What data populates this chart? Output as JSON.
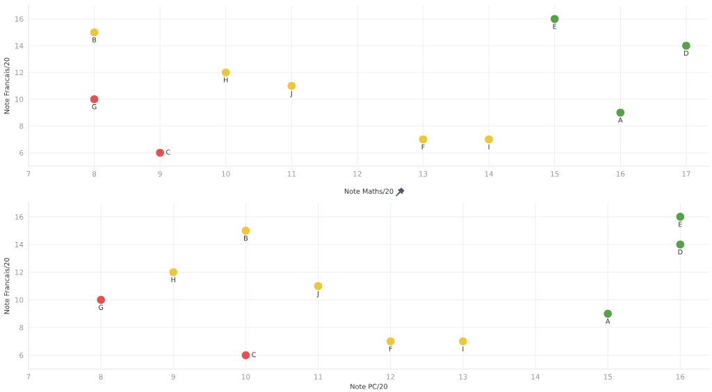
{
  "chart_data": [
    {
      "type": "scatter",
      "xlabel": "Note Maths/20",
      "ylabel": "Note Francais/20",
      "xlim": [
        7,
        17.35
      ],
      "ylim": [
        5,
        17
      ],
      "xticks": [
        7,
        8,
        9,
        10,
        11,
        12,
        13,
        14,
        15,
        16,
        17
      ],
      "yticks": [
        6,
        8,
        10,
        12,
        14,
        16
      ],
      "grid": true,
      "marker": "circle",
      "series": [
        {
          "x": [
            16,
            8,
            9,
            17,
            15,
            13,
            8,
            10,
            14,
            11
          ],
          "values": [
            9,
            15,
            6,
            14,
            16,
            7,
            10,
            12,
            7,
            11
          ],
          "colors": [
            "#55a048",
            "#f0c537",
            "#e15252",
            "#55a048",
            "#55a048",
            "#f0c537",
            "#e15252",
            "#f0c537",
            "#f0c537",
            "#f0c537"
          ]
        }
      ],
      "annotations": [
        {
          "text": "A",
          "x": 16,
          "y": 9
        },
        {
          "text": "B",
          "x": 8,
          "y": 15
        },
        {
          "text": "C",
          "x": 9,
          "y": 6
        },
        {
          "text": "D",
          "x": 17,
          "y": 14
        },
        {
          "text": "E",
          "x": 15,
          "y": 16
        },
        {
          "text": "F",
          "x": 13,
          "y": 7
        },
        {
          "text": "G",
          "x": 8,
          "y": 10
        },
        {
          "text": "H",
          "x": 10,
          "y": 12
        },
        {
          "text": "I",
          "x": 14,
          "y": 7
        },
        {
          "text": "J",
          "x": 11,
          "y": 11
        }
      ]
    },
    {
      "type": "scatter",
      "xlabel": "Note PC/20",
      "ylabel": "Note Francais/20",
      "xlim": [
        7,
        16.4
      ],
      "ylim": [
        5,
        17
      ],
      "xticks": [
        7,
        8,
        9,
        10,
        11,
        12,
        13,
        14,
        15,
        16
      ],
      "yticks": [
        6,
        8,
        10,
        12,
        14,
        16
      ],
      "grid": true,
      "marker": "circle",
      "series": [
        {
          "x": [
            15,
            10,
            10,
            16,
            16,
            12,
            8,
            9,
            13,
            11
          ],
          "values": [
            9,
            15,
            6,
            14,
            16,
            7,
            10,
            12,
            7,
            11
          ],
          "colors": [
            "#55a048",
            "#f0c537",
            "#e15252",
            "#55a048",
            "#55a048",
            "#f0c537",
            "#e15252",
            "#f0c537",
            "#f0c537",
            "#f0c537"
          ]
        }
      ],
      "annotations": [
        {
          "text": "A",
          "x": 15,
          "y": 9
        },
        {
          "text": "B",
          "x": 10,
          "y": 15
        },
        {
          "text": "C",
          "x": 10,
          "y": 6
        },
        {
          "text": "D",
          "x": 16,
          "y": 14
        },
        {
          "text": "E",
          "x": 16,
          "y": 16
        },
        {
          "text": "F",
          "x": 12,
          "y": 7
        },
        {
          "text": "G",
          "x": 8,
          "y": 10
        },
        {
          "text": "H",
          "x": 9,
          "y": 12
        },
        {
          "text": "I",
          "x": 13,
          "y": 7
        },
        {
          "text": "J",
          "x": 11,
          "y": 11
        }
      ]
    }
  ]
}
